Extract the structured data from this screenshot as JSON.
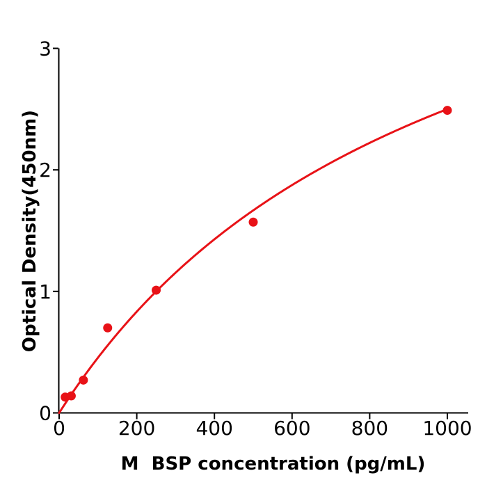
{
  "chart_data": {
    "type": "scatter",
    "title": "",
    "xlabel": "M  BSP concentration (pg/mL)",
    "ylabel": "Optical Density(450nm)",
    "x": [
      15.6,
      31.25,
      62.5,
      125,
      250,
      500,
      1000
    ],
    "y": [
      0.13,
      0.14,
      0.27,
      0.7,
      1.01,
      1.57,
      2.49
    ],
    "x_ticks": [
      0,
      200,
      400,
      600,
      800,
      1000
    ],
    "y_ticks": [
      0,
      1,
      2,
      3
    ],
    "xlim": [
      0,
      1054
    ],
    "ylim": [
      0,
      3
    ],
    "grid": false,
    "legend": null,
    "fit_curve": {
      "type": "hill",
      "formula": "y = 5*x/(1000+x)",
      "vmax": 5,
      "k": 1000,
      "x_range": [
        0,
        1000
      ]
    },
    "point_color": "#e81217",
    "line_color": "#e81217",
    "axis_color": "#000000",
    "text_color": "#000000",
    "background_color": "#ffffff"
  }
}
